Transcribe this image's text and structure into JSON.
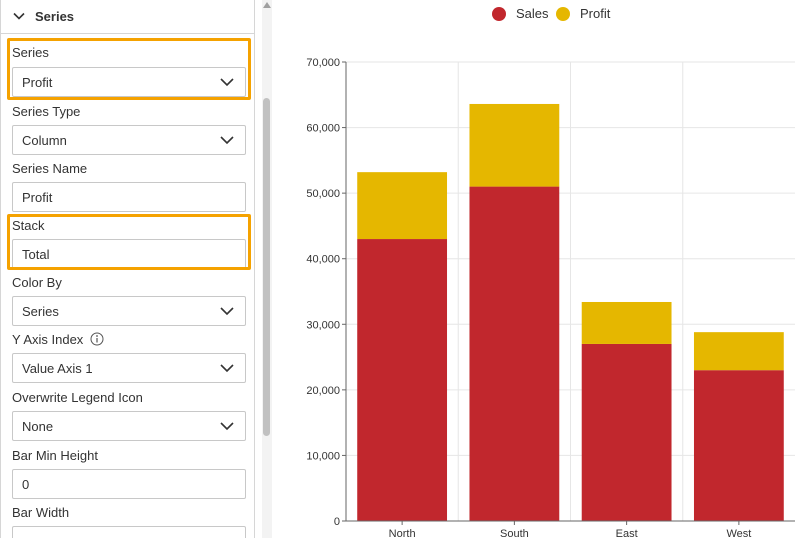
{
  "panel": {
    "section_title": "Series",
    "fields": [
      {
        "label": "Series",
        "value": "Profit",
        "type": "dropdown"
      },
      {
        "label": "Series Type",
        "value": "Column",
        "type": "dropdown"
      },
      {
        "label": "Series Name",
        "value": "Profit",
        "type": "text"
      },
      {
        "label": "Stack",
        "value": "Total",
        "type": "text"
      },
      {
        "label": "Color By",
        "value": "Series",
        "type": "dropdown"
      },
      {
        "label": "Y Axis Index",
        "value": "Value Axis 1",
        "type": "dropdown"
      },
      {
        "label": "Overwrite Legend Icon",
        "value": "None",
        "type": "dropdown"
      },
      {
        "label": "Bar Min Height",
        "value": "0",
        "type": "text"
      },
      {
        "label": "Bar Width",
        "value": "",
        "type": "text"
      }
    ],
    "highlight_color": "#f5a200"
  },
  "chart_data": {
    "type": "bar",
    "stacked": true,
    "categories": [
      "North",
      "South",
      "East",
      "West"
    ],
    "series": [
      {
        "name": "Sales",
        "color": "#c1272d",
        "values": [
          43000,
          51000,
          27000,
          23000
        ]
      },
      {
        "name": "Profit",
        "color": "#e5b700",
        "values": [
          10200,
          12600,
          6400,
          5800
        ]
      }
    ],
    "ylim": [
      0,
      70000
    ],
    "yticks": [
      "0",
      "10,000",
      "20,000",
      "30,000",
      "40,000",
      "50,000",
      "60,000",
      "70,000"
    ],
    "ytick_values": [
      0,
      10000,
      20000,
      30000,
      40000,
      50000,
      60000,
      70000
    ],
    "grid": true,
    "legend_position": "top-center"
  }
}
